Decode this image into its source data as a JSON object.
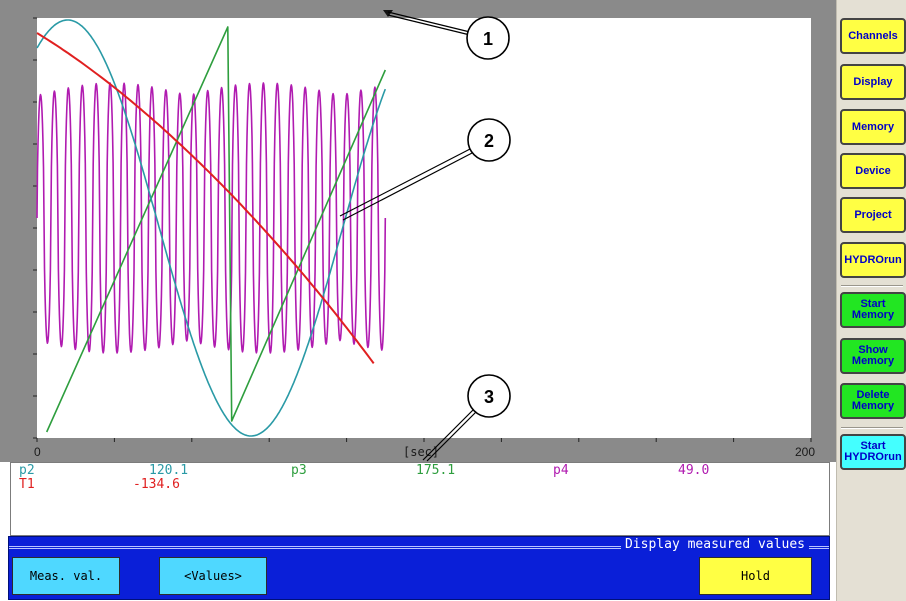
{
  "chart_data": {
    "type": "line",
    "x_unit_label": "[sec]",
    "xlim": [
      0,
      200
    ],
    "x_tick_labels": [
      "0",
      "200"
    ],
    "series": [
      {
        "name": "p2",
        "color": "#b01bb0",
        "kind": "oscillation",
        "x_range": [
          0,
          90
        ]
      },
      {
        "name": "p3",
        "color": "#2e9e3e",
        "kind": "sawtooth",
        "x_range": [
          0,
          90
        ]
      },
      {
        "name": "p4",
        "color": "#2a9aa6",
        "kind": "sine",
        "x_range": [
          0,
          90
        ]
      },
      {
        "name": "T1",
        "color": "#e02020",
        "kind": "decline",
        "x_range": [
          0,
          87
        ]
      }
    ]
  },
  "readout": {
    "p2_label": "p2",
    "p2_value": "120.1",
    "p3_label": "p3",
    "p3_value": "175.1",
    "p4_label": "p4",
    "p4_value": "49.0",
    "t1_label": "T1",
    "t1_value": "-134.6"
  },
  "callouts": [
    "1",
    "2",
    "3"
  ],
  "panel": {
    "title": "Display measured values",
    "buttons": {
      "meas": "Meas. val.",
      "values": "<Values>",
      "hold": "Hold"
    }
  },
  "sidebar": {
    "channels": "Channels",
    "display": "Display",
    "memory": "Memory",
    "device": "Device",
    "project": "Project",
    "hydrorun": "HYDROrun",
    "start_memory": "Start\nMemory",
    "show_memory": "Show\nMemory",
    "delete_memory": "Delete\nMemory",
    "start_hydrorun": "Start\nHYDROrun"
  },
  "colors": {
    "yellow_button": "#ffff44",
    "green_button": "#22e622",
    "cyan_button": "#44ffff",
    "panel_blue": "#0a1fd8",
    "button_text": "#0000c8"
  }
}
